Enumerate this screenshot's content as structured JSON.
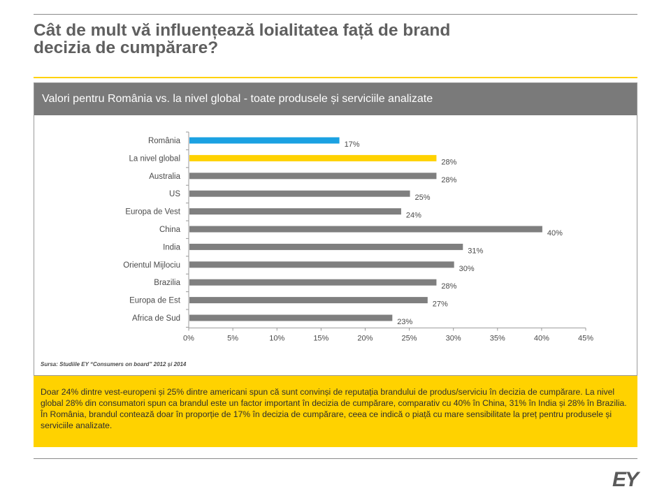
{
  "slide": {
    "title_line1": "Cât de mult vă influențează loialitatea față de brand",
    "title_line2": "decizia de cumpărare?",
    "panel_header": "Valori pentru România vs. la nivel global - toate produsele și serviciile analizate",
    "source": "Sursa: Studiile EY “Consumers on board” 2012 și 2014",
    "summary": "Doar 24% dintre vest-europeni și 25% dintre americani spun că sunt convinși de reputația brandului de produs/serviciu în decizia de cumpărare. La nivel global 28% din consumatori spun ca brandul este un factor important în decizia de cumpărare, comparativ cu 40% în China, 31% în India și 28% în Brazilia. În România, brandul contează doar în proporție de 17% în decizia de cumpărare, ceea ce indică o piață cu mare sensibilitate la preț pentru produsele și serviciile analizate.",
    "logo": "EY"
  },
  "chart_data": {
    "type": "bar",
    "orientation": "horizontal",
    "categories": [
      "România",
      "La nivel global",
      "Australia",
      "US",
      "Europa de Vest",
      "China",
      "India",
      "Orientul Mijlociu",
      "Brazilia",
      "Europa de Est",
      "Africa de Sud"
    ],
    "values": [
      17,
      28,
      28,
      25,
      24,
      40,
      31,
      30,
      28,
      27,
      23
    ],
    "value_labels": [
      "17%",
      "28%",
      "28%",
      "25%",
      "24%",
      "40%",
      "31%",
      "30%",
      "28%",
      "27%",
      "23%"
    ],
    "bar_colors": [
      "#1ba1e2",
      "#ffd200",
      "#7f7f7f",
      "#7f7f7f",
      "#7f7f7f",
      "#7f7f7f",
      "#7f7f7f",
      "#7f7f7f",
      "#7f7f7f",
      "#7f7f7f",
      "#7f7f7f"
    ],
    "xlim": [
      0,
      45
    ],
    "xticks": [
      0,
      5,
      10,
      15,
      20,
      25,
      30,
      35,
      40,
      45
    ],
    "xtick_labels": [
      "0%",
      "5%",
      "10%",
      "15%",
      "20%",
      "25%",
      "30%",
      "35%",
      "40%",
      "45%"
    ],
    "grid": false,
    "legend": "none"
  },
  "colors": {
    "accent_yellow": "#ffd200",
    "header_gray": "#7a7a7a",
    "romania_blue": "#1ba1e2",
    "bar_gray": "#7f7f7f"
  }
}
